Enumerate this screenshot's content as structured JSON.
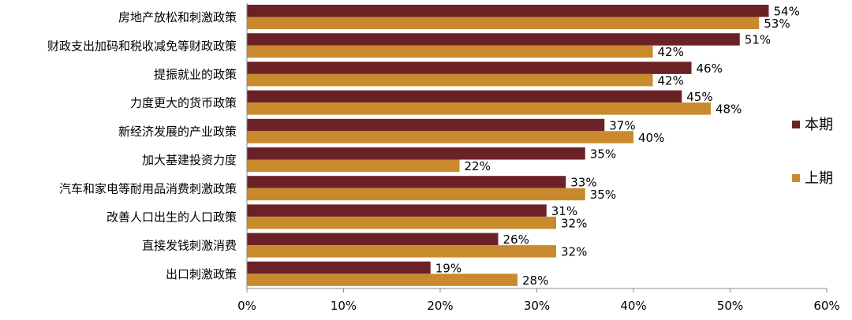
{
  "chart_data": {
    "type": "bar",
    "orientation": "horizontal",
    "categories": [
      "房地产放松和刺激政策",
      "财政支出加码和税收减免等财政政策",
      "提振就业的政策",
      "力度更大的货币政策",
      "新经济发展的产业政策",
      "加大基建投资力度",
      "汽车和家电等耐用品消费刺激政策",
      "改善人口出生的人口政策",
      "直接发钱刺激消费",
      "出口刺激政策"
    ],
    "series": [
      {
        "name": "本期",
        "color": "#6b2226",
        "values": [
          54,
          51,
          46,
          45,
          37,
          35,
          33,
          31,
          26,
          19
        ],
        "labels": [
          "54%",
          "51%",
          "46%",
          "45%",
          "37%",
          "35%",
          "33%",
          "31%",
          "26%",
          "19%"
        ]
      },
      {
        "name": "上期",
        "color": "#c98a2e",
        "values": [
          53,
          42,
          42,
          48,
          40,
          22,
          35,
          32,
          32,
          28
        ],
        "labels": [
          "53%",
          "42%",
          "42%",
          "48%",
          "40%",
          "22%",
          "35%",
          "32%",
          "32%",
          "28%"
        ]
      }
    ],
    "xlim": [
      0,
      60
    ],
    "xticks": [
      "0%",
      "10%",
      "20%",
      "30%",
      "40%",
      "50%",
      "60%"
    ],
    "grid": false,
    "legend_position": "right"
  }
}
